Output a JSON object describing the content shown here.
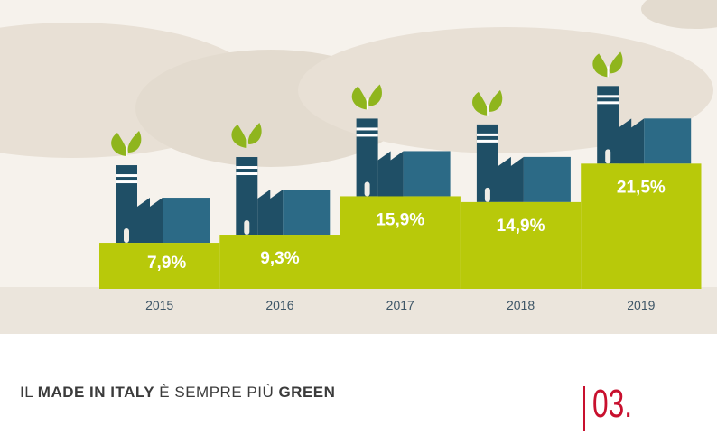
{
  "chart_data": {
    "type": "bar",
    "categories": [
      "2015",
      "2016",
      "2017",
      "2018",
      "2019"
    ],
    "values": [
      7.9,
      9.3,
      15.9,
      14.9,
      21.5
    ],
    "value_labels": [
      "7,9%",
      "9,3%",
      "15,9%",
      "14,9%",
      "21,5%"
    ],
    "title": "",
    "xlabel": "",
    "ylabel": "",
    "ylim": [
      0,
      24
    ],
    "grid": false,
    "legend": "none"
  },
  "caption": {
    "prefix": "IL ",
    "bold1": "MADE IN ITALY",
    "middle": " È SEMPRE PIÙ ",
    "bold2": "GREEN"
  },
  "page_number": "03.",
  "colors": {
    "bar": "#b8c90a",
    "factory_dark": "#1f4f66",
    "factory_light": "#2c6a86",
    "leaf": "#8fb51d",
    "ground": "#ebe5dc",
    "hills": "#e6ded3",
    "background": "#f6f2ec",
    "accent": "#c8102e",
    "label_text": "#ffffff",
    "year_text": "#3d5566"
  },
  "icons": [
    "factory-icon",
    "leaf-icon"
  ]
}
